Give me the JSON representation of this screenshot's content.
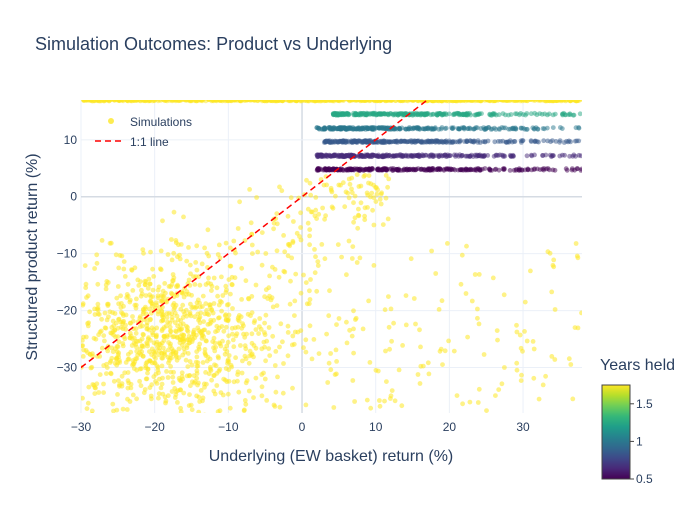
{
  "chart_data": {
    "type": "scatter",
    "title": "Simulation Outcomes: Product vs Underlying",
    "xlabel": "Underlying (EW basket) return (%)",
    "ylabel": "Structured product return (%)",
    "xlim": [
      -30,
      38
    ],
    "ylim": [
      -38,
      17
    ],
    "x_ticks": [
      -30,
      -20,
      -10,
      0,
      10,
      20,
      30
    ],
    "y_ticks": [
      -30,
      -20,
      -10,
      0,
      10
    ],
    "x_tick_labels": [
      "−30",
      "−20",
      "−10",
      "0",
      "10",
      "20",
      "30"
    ],
    "y_tick_labels": [
      "−30",
      "−20",
      "−10",
      "0",
      "10"
    ],
    "grid": true,
    "legend": {
      "position": "top-left",
      "entries": [
        {
          "label": "Simulations",
          "marker": "dot"
        },
        {
          "label": "1:1 line",
          "marker": "dashed-line"
        }
      ]
    },
    "colorbar": {
      "title": "Years held",
      "range": [
        0.5,
        1.75
      ],
      "ticks": [
        0.5,
        1,
        1.5
      ],
      "tick_labels": [
        "0.5",
        "1",
        "1.5"
      ],
      "colorscale": [
        "#440154",
        "#482878",
        "#3e4989",
        "#31688e",
        "#26828e",
        "#1f9e89",
        "#35b779",
        "#6ece58",
        "#b5de2b",
        "#fde725"
      ]
    },
    "series": [
      {
        "name": "Simulations",
        "color_by": "Years held",
        "bands": [
          {
            "y": 17,
            "x_range": [
              -30,
              38
            ],
            "years_held": 1.75,
            "density": "dense"
          },
          {
            "y": 14.5,
            "x_range": [
              4,
              38
            ],
            "years_held": 1.25,
            "density": "dense"
          },
          {
            "y": 12,
            "x_range": [
              2,
              38
            ],
            "years_held": 1.0,
            "density": "dense"
          },
          {
            "y": 9.7,
            "x_range": [
              3,
              38
            ],
            "years_held": 0.85,
            "density": "dense"
          },
          {
            "y": 7.2,
            "x_range": [
              2,
              38
            ],
            "years_held": 0.65,
            "density": "dense"
          },
          {
            "y": 4.8,
            "x_range": [
              2,
              38
            ],
            "years_held": 0.5,
            "density": "dense"
          }
        ],
        "cloud": {
          "years_held": 1.75,
          "x_range": [
            -30,
            38
          ],
          "y_range": [
            -38,
            5
          ],
          "center": [
            -18,
            -25
          ],
          "count_estimate": 1300
        }
      },
      {
        "name": "1:1 line",
        "x": [
          -30,
          17
        ],
        "y": [
          -30,
          17
        ],
        "color": "#ff0000",
        "style": "dashed"
      }
    ]
  }
}
